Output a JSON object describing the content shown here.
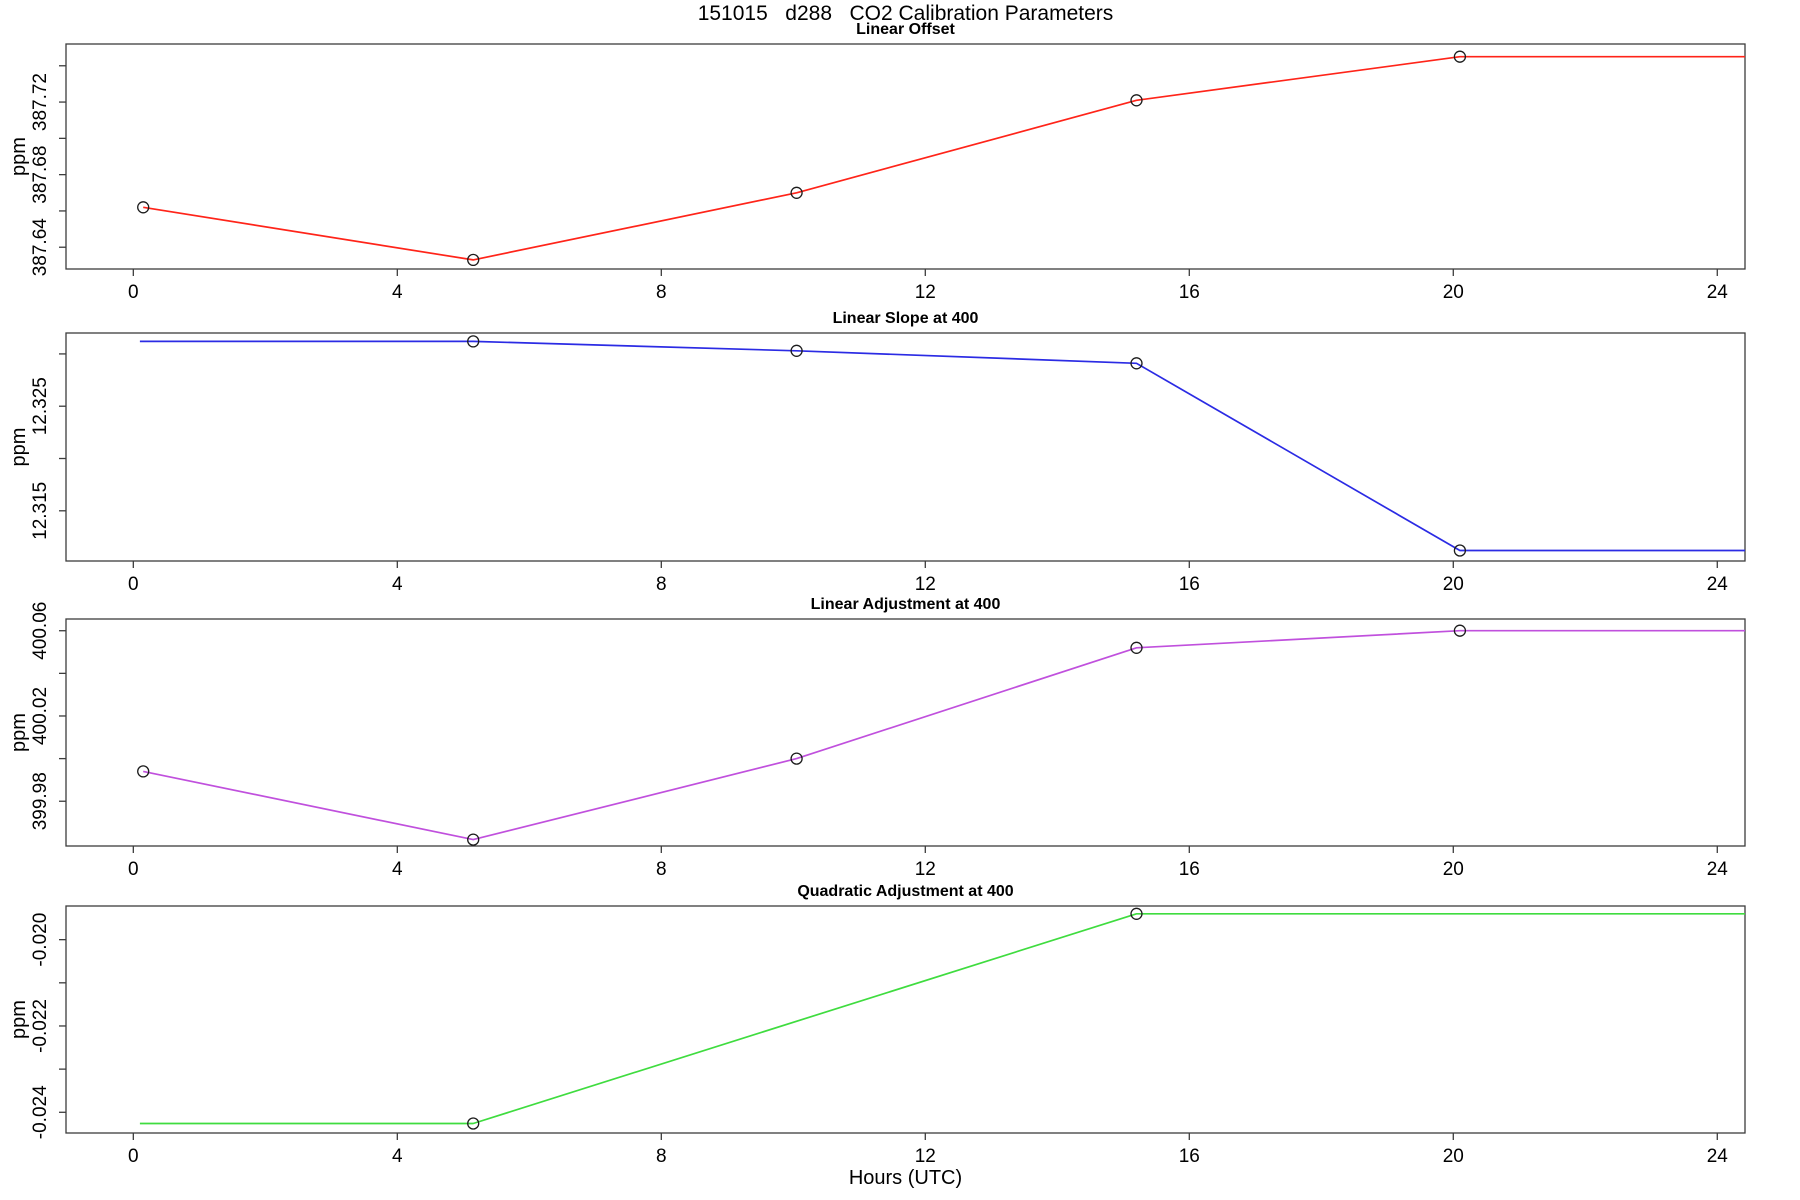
{
  "page_title": "151015   d288   CO2 Calibration Parameters",
  "x_axis": {
    "label": "Hours (UTC)",
    "ticks": [
      0,
      4,
      8,
      12,
      16,
      20,
      24
    ],
    "tick_labels": [
      "0",
      "4",
      "8",
      "12",
      "16",
      "20",
      "24"
    ],
    "xlim": [
      -1.02,
      24.42
    ]
  },
  "chart_data": [
    {
      "id": "linear-offset",
      "type": "line",
      "title": "Linear Offset",
      "ylabel": "ppm",
      "color": "#ff2419",
      "x": [
        0.15,
        5.15,
        10.05,
        15.2,
        20.1
      ],
      "values": [
        387.662,
        387.633,
        387.67,
        387.721,
        387.745
      ],
      "line": [
        [
          0.15,
          387.662
        ],
        [
          5.15,
          387.633
        ],
        [
          10.05,
          387.67
        ],
        [
          15.2,
          387.721
        ],
        [
          20.1,
          387.745
        ],
        [
          24.42,
          387.745
        ]
      ],
      "markers": [
        [
          0.15,
          387.662
        ],
        [
          5.15,
          387.633
        ],
        [
          10.05,
          387.67
        ],
        [
          15.2,
          387.721
        ],
        [
          20.1,
          387.745
        ]
      ],
      "ylim": [
        387.628,
        387.752
      ],
      "yticks": [
        387.64,
        387.66,
        387.68,
        387.7,
        387.72,
        387.74
      ],
      "ytick_labels": [
        "387.64",
        "",
        "387.68",
        "",
        "387.72",
        ""
      ]
    },
    {
      "id": "linear-slope-at-400",
      "type": "line",
      "title": "Linear Slope at 400",
      "ylabel": "ppm",
      "color": "#2b2be4",
      "x": [
        5.15,
        10.05,
        15.2,
        20.1
      ],
      "values": [
        12.3312,
        12.3303,
        12.3291,
        12.3112
      ],
      "line": [
        [
          0.1,
          12.3312
        ],
        [
          5.15,
          12.3312
        ],
        [
          10.05,
          12.3303
        ],
        [
          15.2,
          12.3291
        ],
        [
          20.1,
          12.3112
        ],
        [
          24.42,
          12.3112
        ]
      ],
      "markers": [
        [
          5.15,
          12.3312
        ],
        [
          10.05,
          12.3303
        ],
        [
          15.2,
          12.3291
        ],
        [
          20.1,
          12.3112
        ]
      ],
      "ylim": [
        12.3102,
        12.332
      ],
      "yticks": [
        12.315,
        12.32,
        12.325,
        12.33
      ],
      "ytick_labels": [
        "12.315",
        "",
        "12.325",
        ""
      ]
    },
    {
      "id": "linear-adjustment-at-400",
      "type": "line",
      "title": "Linear Adjustment at 400",
      "ylabel": "ppm",
      "color": "#c050dd",
      "x": [
        0.15,
        5.15,
        10.05,
        15.2,
        20.1
      ],
      "values": [
        399.994,
        399.962,
        400.0,
        400.052,
        400.06
      ],
      "line": [
        [
          0.15,
          399.994
        ],
        [
          5.15,
          399.962
        ],
        [
          10.05,
          400.0
        ],
        [
          15.2,
          400.052
        ],
        [
          20.1,
          400.06
        ],
        [
          24.42,
          400.06
        ]
      ],
      "markers": [
        [
          0.15,
          399.994
        ],
        [
          5.15,
          399.962
        ],
        [
          10.05,
          400.0
        ],
        [
          15.2,
          400.052
        ],
        [
          20.1,
          400.06
        ]
      ],
      "ylim": [
        399.959,
        400.0655
      ],
      "yticks": [
        399.98,
        400.0,
        400.02,
        400.04,
        400.06
      ],
      "ytick_labels": [
        "399.98",
        "",
        "400.02",
        "",
        "400.06"
      ]
    },
    {
      "id": "quadratic-adjustment-at-400",
      "type": "line",
      "title": "Quadratic Adjustment at 400",
      "ylabel": "ppm",
      "color": "#3fdc3f",
      "x": [
        5.15,
        15.2
      ],
      "values": [
        -0.02426,
        -0.0194
      ],
      "line": [
        [
          0.1,
          -0.02426
        ],
        [
          5.15,
          -0.02426
        ],
        [
          15.2,
          -0.0194
        ],
        [
          24.42,
          -0.0194
        ]
      ],
      "markers": [
        [
          5.15,
          -0.02426
        ],
        [
          15.2,
          -0.0194
        ]
      ],
      "ylim": [
        -0.02448,
        -0.01922
      ],
      "yticks": [
        -0.024,
        -0.023,
        -0.022,
        -0.021,
        -0.02
      ],
      "ytick_labels": [
        "-0.024",
        "",
        "-0.022",
        "",
        "-0.020"
      ]
    }
  ]
}
